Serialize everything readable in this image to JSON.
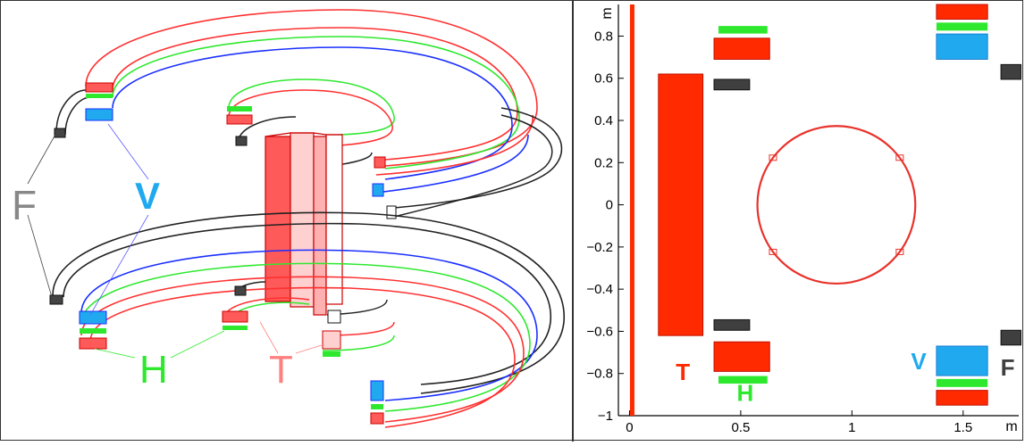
{
  "colors": {
    "T": "#ff2a00",
    "H": "#2ee82e",
    "V": "#21a9f0",
    "F": "#3f3f3f",
    "circle": "#e8322b",
    "wall": "#ff2a00"
  },
  "left_labels": {
    "F": "F",
    "V": "V",
    "H": "H",
    "T": "T"
  },
  "chart_data": {
    "type": "diagram-plot",
    "xlabel": "m",
    "ylabel": "m",
    "xlim": [
      -0.05,
      1.75
    ],
    "ylim": [
      -1.0,
      0.95
    ],
    "xticks": [
      0,
      0.5,
      1,
      1.5
    ],
    "xtick_labels": [
      "0",
      "0.5",
      "1",
      "1.5"
    ],
    "yticks": [
      0.8,
      0.6,
      0.4,
      0.2,
      0,
      -0.2,
      -0.4,
      -0.6,
      -0.8,
      -1
    ],
    "ytick_labels": [
      "0.8",
      "0.6",
      "0.4",
      "0.2",
      "0",
      "−0.2",
      "−0.4",
      "−0.6",
      "−0.8",
      "−1"
    ],
    "coils": [
      {
        "group": "T",
        "x0": 0.13,
        "x1": 0.33,
        "y0": -0.62,
        "y1": 0.62
      },
      {
        "group": "H",
        "x0": 0.4,
        "x1": 0.62,
        "y0": 0.812,
        "y1": 0.848
      },
      {
        "group": "T",
        "x0": 0.38,
        "x1": 0.63,
        "y0": 0.69,
        "y1": 0.79
      },
      {
        "group": "F",
        "x0": 0.38,
        "x1": 0.54,
        "y0": 0.545,
        "y1": 0.595
      },
      {
        "group": "F",
        "x0": 0.38,
        "x1": 0.54,
        "y0": -0.595,
        "y1": -0.545
      },
      {
        "group": "T",
        "x0": 0.38,
        "x1": 0.63,
        "y0": -0.79,
        "y1": -0.65
      },
      {
        "group": "H",
        "x0": 0.4,
        "x1": 0.62,
        "y0": -0.848,
        "y1": -0.812
      },
      {
        "group": "T",
        "x0": 1.38,
        "x1": 1.61,
        "y0": 0.88,
        "y1": 0.95
      },
      {
        "group": "H",
        "x0": 1.38,
        "x1": 1.61,
        "y0": 0.826,
        "y1": 0.864
      },
      {
        "group": "V",
        "x0": 1.38,
        "x1": 1.61,
        "y0": 0.69,
        "y1": 0.81
      },
      {
        "group": "F",
        "x0": 1.67,
        "x1": 1.76,
        "y0": 0.595,
        "y1": 0.665
      },
      {
        "group": "V",
        "x0": 1.38,
        "x1": 1.61,
        "y0": -0.81,
        "y1": -0.67
      },
      {
        "group": "H",
        "x0": 1.38,
        "x1": 1.61,
        "y0": -0.864,
        "y1": -0.826
      },
      {
        "group": "T",
        "x0": 1.38,
        "x1": 1.61,
        "y0": -0.95,
        "y1": -0.88
      },
      {
        "group": "F",
        "x0": 1.67,
        "x1": 1.76,
        "y0": -0.665,
        "y1": -0.595
      }
    ],
    "vessel": {
      "cx": 0.93,
      "cy": 0.0,
      "r": 0.355
    },
    "wall_x": 0.0,
    "labels": [
      {
        "text": "T",
        "x": 0.24,
        "y": -0.83,
        "group": "T"
      },
      {
        "text": "H",
        "x": 0.52,
        "y": -0.93,
        "group": "H"
      },
      {
        "text": "V",
        "x": 1.3,
        "y": -0.78,
        "group": "V"
      },
      {
        "text": "F",
        "x": 1.7,
        "y": -0.81,
        "group": "F"
      }
    ]
  }
}
